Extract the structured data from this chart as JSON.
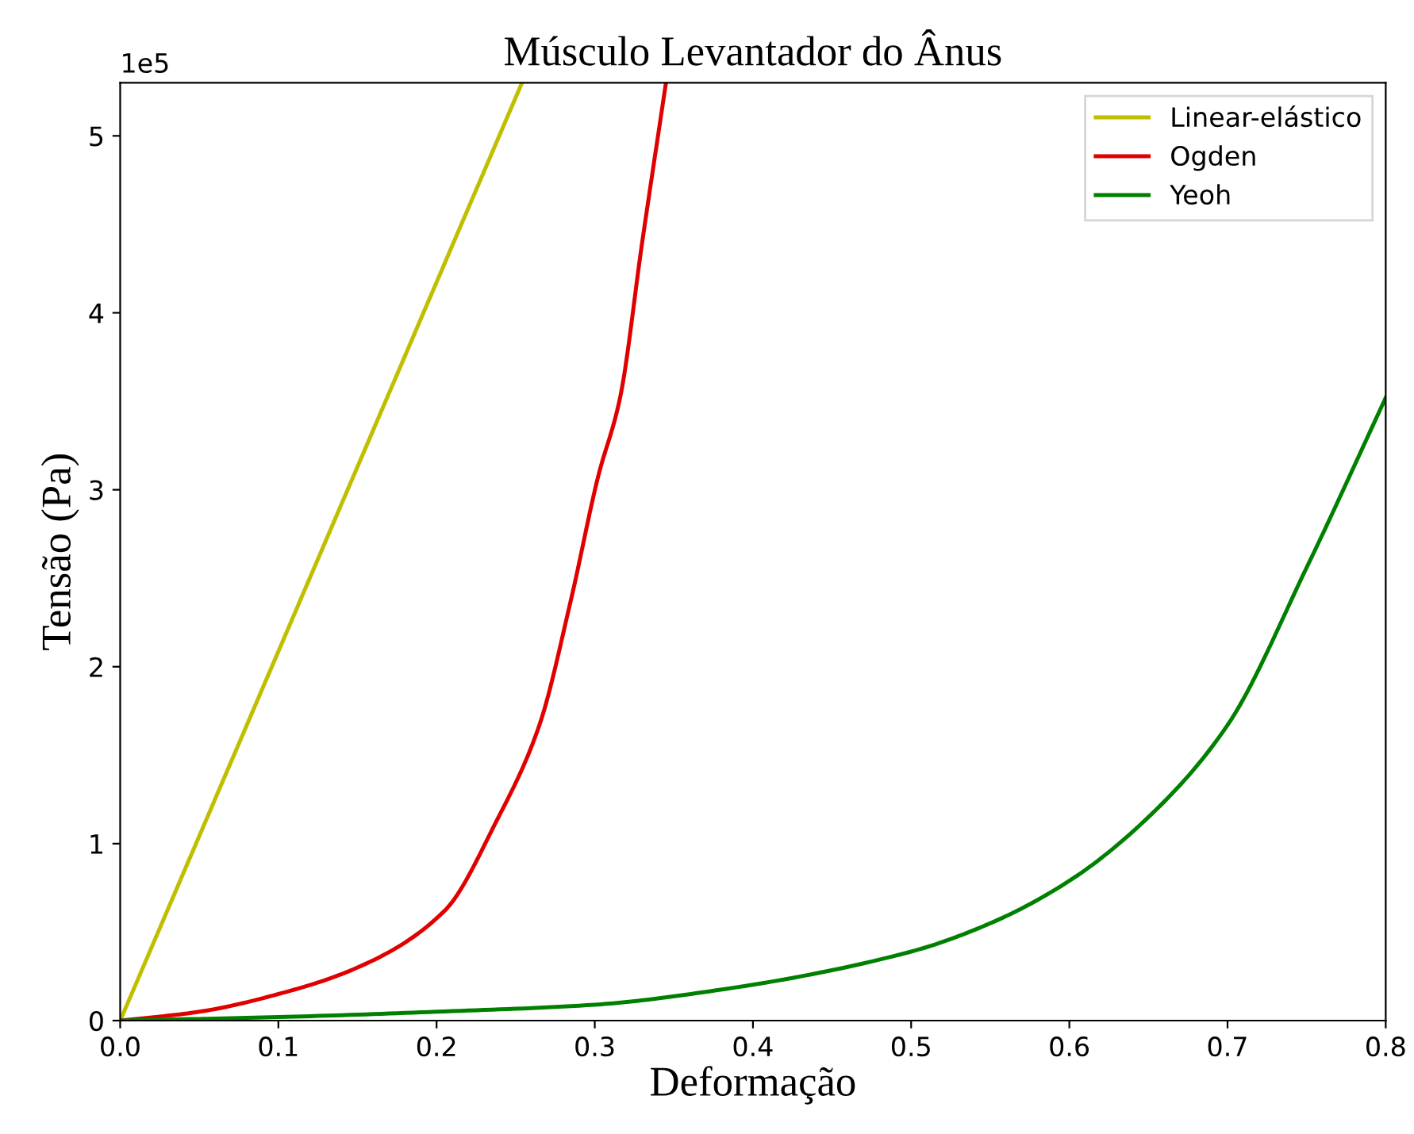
{
  "chart_data": {
    "type": "line",
    "title": "Músculo Levantador do Ânus",
    "xlabel": "Deformação",
    "ylabel": "Tensão (Pa)",
    "xlim": [
      0,
      0.8
    ],
    "xticks": [
      {
        "value": 0,
        "label": "0.0"
      },
      0.1,
      0.2,
      0.3,
      0.4,
      0.5,
      0.6,
      0.7,
      0.8
    ],
    "ylim": [
      0,
      5.3
    ],
    "yticks": [
      0,
      1,
      2,
      3,
      4,
      5
    ],
    "annotations": [
      "1e5"
    ],
    "grid": false,
    "legend": "top right",
    "series": [
      {
        "name": "Linear-elástico",
        "color": "#bfbf00",
        "x": [
          0,
          0.254
        ],
        "values": [
          0,
          5.3
        ]
      },
      {
        "name": "Ogden",
        "color": "#e00000",
        "x": [
          0,
          0.05,
          0.1,
          0.15,
          0.205,
          0.238,
          0.265,
          0.285,
          0.302,
          0.316,
          0.33,
          0.345
        ],
        "values": [
          0,
          0.05,
          0.15,
          0.3,
          0.62,
          1.13,
          1.67,
          2.38,
          3.07,
          3.52,
          4.4,
          5.3
        ]
      },
      {
        "name": "Yeoh",
        "color": "#008000",
        "x": [
          0,
          0.1,
          0.2,
          0.3,
          0.376,
          0.5,
          0.55,
          0.6,
          0.65,
          0.7,
          0.75,
          0.8
        ],
        "values": [
          0,
          0.02,
          0.05,
          0.09,
          0.17,
          0.39,
          0.55,
          0.79,
          1.15,
          1.67,
          2.56,
          3.52
        ]
      }
    ]
  }
}
